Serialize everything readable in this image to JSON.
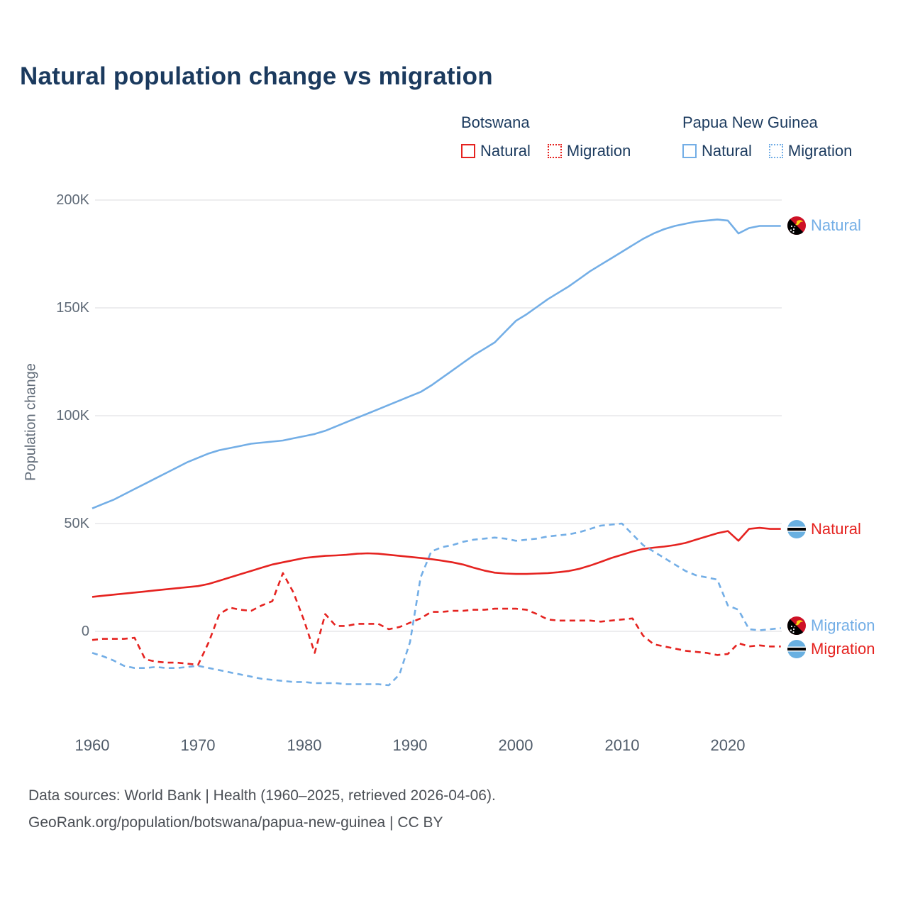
{
  "title": "Natural population change vs migration",
  "legend": {
    "groups": [
      {
        "label": "Botswana",
        "color": "#e52320",
        "items": [
          {
            "label": "Natural",
            "style": "solid"
          },
          {
            "label": "Migration",
            "style": "dashed"
          }
        ]
      },
      {
        "label": "Papua New Guinea",
        "color": "#73aee6",
        "items": [
          {
            "label": "Natural",
            "style": "solid"
          },
          {
            "label": "Migration",
            "style": "dashed"
          }
        ]
      }
    ]
  },
  "y_axis": {
    "label": "Population change",
    "ticks": [
      "200K",
      "150K",
      "100K",
      "50K",
      "0"
    ]
  },
  "x_axis": {
    "ticks": [
      "1960",
      "1970",
      "1980",
      "1990",
      "2000",
      "2010",
      "2020"
    ]
  },
  "end_labels": [
    {
      "label": "Natural",
      "country": "Papua New Guinea",
      "color": "#73aee6"
    },
    {
      "label": "Natural",
      "country": "Botswana",
      "color": "#e52320"
    },
    {
      "label": "Migration",
      "country": "Papua New Guinea",
      "color": "#73aee6"
    },
    {
      "label": "Migration",
      "country": "Botswana",
      "color": "#e52320"
    }
  ],
  "footer": {
    "line1": "Data sources: World Bank | Health (1960–2025, retrieved 2026-04-06).",
    "line2": "GeoRank.org/population/botswana/papua-new-guinea | CC BY"
  },
  "chart_data": {
    "type": "line",
    "title": "Natural population change vs migration",
    "xlabel": "",
    "ylabel": "Population change",
    "x_start": 1960,
    "x_end": 2025,
    "ylim": [
      -45000,
      210000
    ],
    "ytick_values": [
      0,
      50000,
      100000,
      150000,
      200000
    ],
    "xtick_values": [
      1960,
      1970,
      1980,
      1990,
      2000,
      2010,
      2020
    ],
    "grid": "horizontal",
    "legend_position": "top-right",
    "series": [
      {
        "name": "Papua New Guinea Natural",
        "color": "#73aee6",
        "dash": false,
        "values": [
          57000,
          59000,
          61000,
          63500,
          66000,
          68500,
          71000,
          73500,
          76000,
          78500,
          80500,
          82500,
          84000,
          85000,
          86000,
          87000,
          87500,
          88000,
          88500,
          89500,
          90500,
          91500,
          93000,
          95000,
          97000,
          99000,
          101000,
          103000,
          105000,
          107000,
          109000,
          111000,
          114000,
          117500,
          121000,
          124500,
          128000,
          131000,
          134000,
          139000,
          144000,
          147000,
          150500,
          154000,
          157000,
          160000,
          163500,
          167000,
          170000,
          173000,
          176000,
          179000,
          182000,
          184500,
          186500,
          188000,
          189000,
          190000,
          190500,
          191000,
          190500,
          184500,
          187000,
          188000,
          188000,
          188000
        ]
      },
      {
        "name": "Botswana Natural",
        "color": "#e52320",
        "dash": false,
        "values": [
          16000,
          16500,
          17000,
          17500,
          18000,
          18500,
          19000,
          19500,
          20000,
          20500,
          21000,
          22000,
          23500,
          25000,
          26500,
          28000,
          29500,
          31000,
          32000,
          33000,
          34000,
          34500,
          35000,
          35200,
          35500,
          36000,
          36200,
          36000,
          35500,
          35000,
          34500,
          34000,
          33500,
          32800,
          32000,
          31000,
          29500,
          28200,
          27200,
          26800,
          26600,
          26600,
          26800,
          27000,
          27400,
          28000,
          29000,
          30500,
          32200,
          34000,
          35500,
          37000,
          38200,
          38800,
          39300,
          40000,
          41000,
          42500,
          44000,
          45500,
          46500,
          42000,
          47500,
          48000,
          47500,
          47500
        ]
      },
      {
        "name": "Papua New Guinea Migration",
        "color": "#73aee6",
        "dash": true,
        "values": [
          -10000,
          -11500,
          -13500,
          -16000,
          -17000,
          -17000,
          -16500,
          -17000,
          -17000,
          -16500,
          -16000,
          -17000,
          -18000,
          -19000,
          -20000,
          -21000,
          -22000,
          -22500,
          -23000,
          -23500,
          -23500,
          -24000,
          -24000,
          -24000,
          -24500,
          -24500,
          -24500,
          -24500,
          -25000,
          -20000,
          -5000,
          25000,
          37000,
          39000,
          40000,
          41500,
          42500,
          43000,
          43500,
          43000,
          42000,
          42500,
          43000,
          44000,
          44500,
          45000,
          46000,
          47500,
          49000,
          49500,
          50000,
          45000,
          40000,
          37000,
          34000,
          31000,
          28000,
          26000,
          25000,
          24000,
          12000,
          10000,
          1000,
          500,
          1000,
          1500
        ]
      },
      {
        "name": "Botswana Migration",
        "color": "#e52320",
        "dash": true,
        "values": [
          -4000,
          -3500,
          -3500,
          -3500,
          -3000,
          -13000,
          -14000,
          -14500,
          -14500,
          -15000,
          -15500,
          -5000,
          8000,
          11000,
          10000,
          9500,
          12000,
          14000,
          27000,
          18000,
          5000,
          -10000,
          8000,
          2500,
          2500,
          3500,
          3500,
          3500,
          1000,
          2000,
          4000,
          6000,
          9000,
          9000,
          9500,
          9500,
          10000,
          10000,
          10500,
          10500,
          10500,
          10000,
          8000,
          5500,
          5000,
          5000,
          5000,
          5000,
          4500,
          5000,
          5500,
          6000,
          -2000,
          -6000,
          -7000,
          -8000,
          -9000,
          -9500,
          -10000,
          -11000,
          -10500,
          -5500,
          -7000,
          -6500,
          -7000,
          -7000
        ]
      }
    ]
  }
}
